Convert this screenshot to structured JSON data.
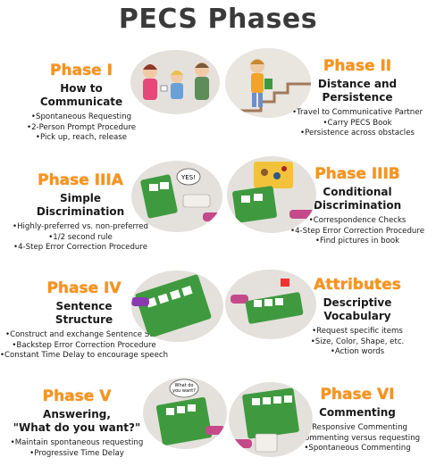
{
  "title": "PECS Phases",
  "phases": [
    {
      "name": "Phase I",
      "subtitle_lines": [
        "How to",
        "Communicate"
      ],
      "items": [
        "Spontaneous Requesting",
        "2-Person Prompt Procedure",
        "Pick up, reach, release"
      ]
    },
    {
      "name": "Phase II",
      "subtitle_lines": [
        "Distance and",
        "Persistence"
      ],
      "items": [
        "Travel to Communicative Partner",
        "Carry PECS Book",
        "Persistence across obstacles"
      ]
    },
    {
      "name": "Phase IIIA",
      "subtitle_lines": [
        "Simple",
        "Discrimination"
      ],
      "items": [
        "Highly-preferred vs. non-preferred",
        "1/2 second rule",
        "4-Step Error Correction Procedure"
      ]
    },
    {
      "name": "Phase IIIB",
      "subtitle_lines": [
        "Conditional",
        "Discrimination"
      ],
      "items": [
        "Correspondence Checks",
        "4-Step Error Correction Procedure",
        "Find pictures in book"
      ]
    },
    {
      "name": "Phase IV",
      "subtitle_lines": [
        "Sentence",
        "Structure"
      ],
      "items": [
        "Construct and exchange Sentence Strip",
        "Backstep Error Correction Procedure",
        "Constant Time Delay to encourage speech"
      ]
    },
    {
      "name": "Attributes",
      "subtitle_lines": [
        "Descriptive",
        "Vocabulary"
      ],
      "items": [
        "Request specific items",
        "Size, Color, Shape, etc.",
        "Action words"
      ]
    },
    {
      "name": "Phase V",
      "subtitle_lines": [
        "Answering,",
        "\"What do you want?\""
      ],
      "items": [
        "Maintain spontaneous requesting",
        "Progressive Time Delay"
      ]
    },
    {
      "name": "Phase VI",
      "subtitle_lines": [
        "Commenting"
      ],
      "items": [
        "Responsive Commenting",
        "Commenting versus requesting",
        "Spontaneous Commenting"
      ]
    }
  ],
  "bubbles": {
    "yes": "YES!",
    "question_lines": [
      "What do",
      "you want?"
    ]
  },
  "colors": {
    "accent": "#f7941d",
    "text": "#1a1a1a",
    "binder": "#3f9a3f",
    "illustration_bg": "#e4e1dc"
  }
}
